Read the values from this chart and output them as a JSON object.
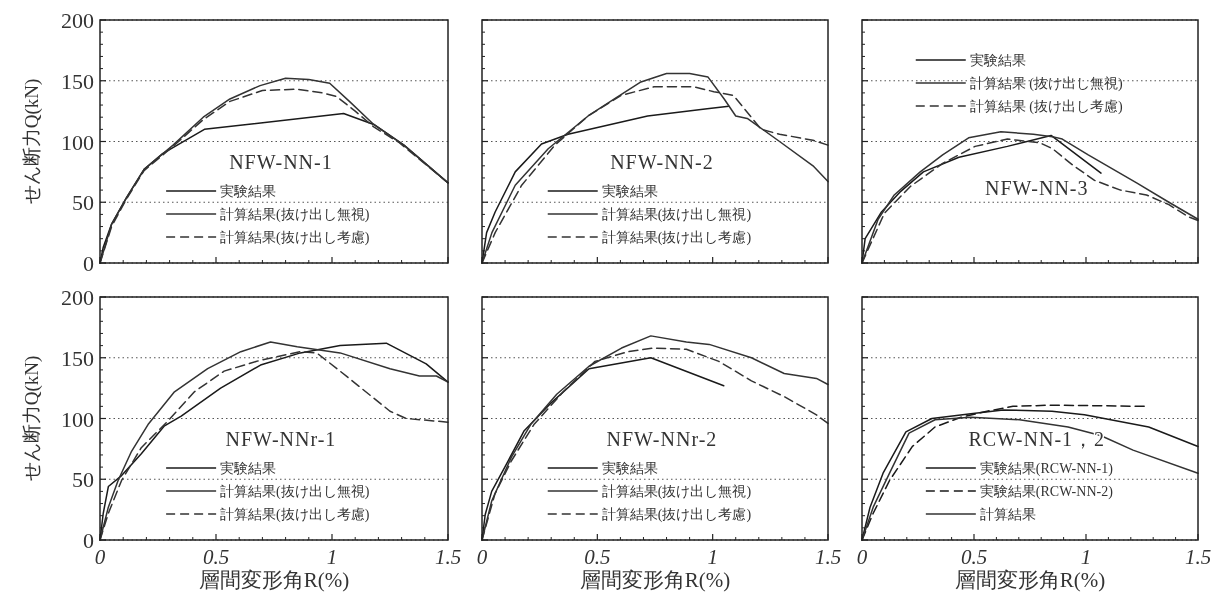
{
  "chart_data": [
    {
      "type": "line",
      "title": "NFW-NN-1",
      "ylabel": "せん断力Q(kN)",
      "xlim": [
        0,
        1.5
      ],
      "ylim": [
        0,
        200
      ],
      "xticks": [
        0,
        0.5,
        1,
        1.5
      ],
      "yticks": [
        0,
        50,
        100,
        150,
        200
      ],
      "grid": "y",
      "legend": "bottom",
      "tick_labels": "y",
      "series": [
        {
          "name": "実験結果",
          "color": "#1a1a1a",
          "line_style": "solid",
          "x": [
            0,
            0.014,
            0.05,
            0.115,
            0.19,
            0.27,
            0.45,
            1.05,
            1.18,
            1.31,
            1.5
          ],
          "values": [
            0,
            13,
            32,
            54,
            77,
            90,
            110,
            123,
            114,
            97,
            66
          ]
        },
        {
          "name": "計算結果(抜け出し無視)",
          "color": "#333333",
          "line_style": "solid",
          "x": [
            0,
            0.05,
            0.115,
            0.19,
            0.315,
            0.445,
            0.56,
            0.69,
            0.8,
            0.9,
            0.99,
            1.075,
            1.18,
            1.31,
            1.5
          ],
          "values": [
            0,
            32,
            54,
            77,
            97,
            120,
            135,
            146,
            152,
            151,
            148,
            133,
            114,
            97,
            66
          ]
        },
        {
          "name": "計算結果(抜け出し考慮)",
          "color": "#333333",
          "line_style": "dashed",
          "x": [
            0,
            0.05,
            0.115,
            0.19,
            0.315,
            0.445,
            0.56,
            0.7,
            0.85,
            0.96,
            1.02,
            1.1,
            1.18,
            1.29,
            1.5
          ],
          "values": [
            0,
            30,
            53,
            76,
            96,
            118,
            133,
            142,
            143,
            140,
            137,
            125,
            112,
            99,
            66
          ]
        }
      ]
    },
    {
      "type": "line",
      "title": "NFW-NN-2",
      "xlim": [
        0,
        1.5
      ],
      "ylim": [
        0,
        200
      ],
      "xticks": [
        0,
        0.5,
        1,
        1.5
      ],
      "yticks": [
        0,
        50,
        100,
        150,
        200
      ],
      "grid": "y",
      "legend": "bottom",
      "tick_labels": false,
      "series": [
        {
          "name": "実験結果",
          "color": "#1a1a1a",
          "line_style": "solid",
          "x": [
            0,
            0.02,
            0.057,
            0.144,
            0.258,
            0.373,
            0.718,
            0.976,
            1.07
          ],
          "values": [
            0,
            25,
            42,
            75,
            98,
            106,
            121,
            127,
            129
          ]
        },
        {
          "name": "計算結果(抜け出し無視)",
          "color": "#333333",
          "line_style": "solid",
          "x": [
            0,
            0.043,
            0.144,
            0.287,
            0.46,
            0.574,
            0.689,
            0.8,
            0.9,
            0.98,
            1.05,
            1.1,
            1.15,
            1.29,
            1.435,
            1.5
          ],
          "values": [
            0,
            25,
            64,
            94,
            121,
            135,
            149,
            156,
            156,
            153,
            135,
            121,
            119,
            100,
            80,
            67
          ]
        },
        {
          "name": "計算結果(抜け出し考慮)",
          "color": "#333333",
          "line_style": "dashed",
          "x": [
            0,
            0.057,
            0.172,
            0.316,
            0.46,
            0.603,
            0.746,
            0.919,
            1.005,
            1.09,
            1.21,
            1.29,
            1.435,
            1.5
          ],
          "values": [
            0,
            25,
            64,
            97,
            121,
            138,
            145,
            145,
            141,
            138,
            110,
            106,
            101,
            97
          ]
        }
      ]
    },
    {
      "type": "line",
      "title": "NFW-NN-3",
      "xlim": [
        0,
        1.5
      ],
      "ylim": [
        0,
        200
      ],
      "xticks": [
        0,
        0.5,
        1,
        1.5
      ],
      "yticks": [
        0,
        50,
        100,
        150,
        200
      ],
      "grid": "y",
      "legend": "top",
      "tick_labels": false,
      "series": [
        {
          "name": "実験結果",
          "color": "#1a1a1a",
          "line_style": "solid",
          "x": [
            0,
            0.014,
            0.087,
            0.173,
            0.274,
            0.433,
            0.649,
            0.844,
            1.067
          ],
          "values": [
            0,
            20,
            42,
            59,
            75,
            87,
            96,
            105,
            74
          ]
        },
        {
          "name": "計算結果 (抜け出し無視)",
          "color": "#333333",
          "line_style": "solid",
          "x": [
            0,
            0.072,
            0.144,
            0.26,
            0.36,
            0.476,
            0.62,
            0.765,
            0.85,
            0.894,
            1.01,
            1.226,
            1.37,
            1.5
          ],
          "values": [
            0,
            36,
            56,
            75,
            89,
            103,
            108,
            106,
            104,
            102,
            89,
            66,
            50,
            36
          ]
        },
        {
          "name": "計算結果 (抜け出し考慮)",
          "color": "#333333",
          "line_style": "dashed",
          "x": [
            0,
            0.1,
            0.216,
            0.36,
            0.505,
            0.649,
            0.793,
            0.851,
            0.938,
            1.038,
            1.154,
            1.27,
            1.37,
            1.457,
            1.5
          ],
          "values": [
            0,
            41,
            63,
            82,
            96,
            102,
            99,
            94,
            81,
            68,
            60,
            56,
            48,
            38,
            35
          ]
        }
      ]
    },
    {
      "type": "line",
      "title": "NFW-NNr-1",
      "xlabel": "層間変形角R(%)",
      "ylabel": "せん断力Q(kN)",
      "xlim": [
        0,
        1.5
      ],
      "ylim": [
        0,
        200
      ],
      "xticks": [
        0,
        0.5,
        1,
        1.5
      ],
      "yticks": [
        0,
        50,
        100,
        150,
        200
      ],
      "grid": "y",
      "legend": "bottom",
      "series": [
        {
          "name": "実験結果",
          "color": "#1a1a1a",
          "line_style": "solid",
          "x": [
            0,
            0.014,
            0.036,
            0.093,
            0.178,
            0.278,
            0.35,
            0.52,
            0.692,
            0.864,
            1.035,
            1.234,
            1.406,
            1.5
          ],
          "values": [
            0,
            22,
            44,
            53,
            71,
            94,
            102,
            125,
            144,
            154,
            160,
            162,
            145,
            130
          ]
        },
        {
          "name": "計算結果(抜け出し無視)",
          "color": "#333333",
          "line_style": "solid",
          "x": [
            0,
            0.036,
            0.078,
            0.136,
            0.207,
            0.321,
            0.464,
            0.607,
            0.735,
            0.85,
            1.035,
            1.25,
            1.377,
            1.45,
            1.5
          ],
          "values": [
            0,
            27,
            49,
            73,
            95,
            122,
            141,
            155,
            163,
            159,
            154,
            141,
            135,
            135,
            130
          ]
        },
        {
          "name": "計算結果(抜け出し考慮)",
          "color": "#333333",
          "line_style": "dashed",
          "x": [
            0,
            0.036,
            0.093,
            0.178,
            0.293,
            0.407,
            0.535,
            0.692,
            0.864,
            0.934,
            1.035,
            1.25,
            1.32,
            1.5
          ],
          "values": [
            0,
            22,
            49,
            76,
            98,
            122,
            139,
            148,
            155,
            154,
            139,
            106,
            100,
            97
          ]
        }
      ]
    },
    {
      "type": "line",
      "title": "NFW-NNr-2",
      "xlabel": "層間変形角R(%)",
      "xlim": [
        0,
        1.5
      ],
      "ylim": [
        0,
        200
      ],
      "xticks": [
        0,
        0.5,
        1,
        1.5
      ],
      "yticks": [
        0,
        50,
        100,
        150,
        200
      ],
      "grid": "y",
      "legend": "bottom",
      "tick_labels": "x",
      "series": [
        {
          "name": "実験結果",
          "color": "#1a1a1a",
          "line_style": "solid",
          "x": [
            0,
            0.014,
            0.042,
            0.113,
            0.183,
            0.295,
            0.464,
            0.732,
            1.048
          ],
          "values": [
            0,
            21,
            40,
            65,
            90,
            112,
            141,
            150,
            127
          ]
        },
        {
          "name": "計算結果(抜け出し無視)",
          "color": "#333333",
          "line_style": "solid",
          "x": [
            0,
            0.042,
            0.127,
            0.211,
            0.324,
            0.464,
            0.605,
            0.732,
            0.886,
            0.985,
            1.168,
            1.31,
            1.45,
            1.5
          ],
          "values": [
            0,
            32,
            68,
            95,
            120,
            143,
            158,
            168,
            163,
            161,
            150,
            137,
            133,
            128
          ]
        },
        {
          "name": "計算結果(抜け出し考慮)",
          "color": "#333333",
          "line_style": "dashed",
          "x": [
            0,
            0.056,
            0.127,
            0.225,
            0.352,
            0.49,
            0.633,
            0.746,
            0.886,
            1.027,
            1.168,
            1.31,
            1.45,
            1.5
          ],
          "values": [
            0,
            38,
            65,
            95,
            122,
            147,
            155,
            158,
            157,
            147,
            131,
            118,
            103,
            96
          ]
        }
      ]
    },
    {
      "type": "line",
      "title": "RCW-NN-1，2",
      "xlabel": "層間変形角R(%)",
      "xlim": [
        0,
        1.5
      ],
      "ylim": [
        0,
        200
      ],
      "xticks": [
        0,
        0.5,
        1,
        1.5
      ],
      "yticks": [
        0,
        50,
        100,
        150,
        200
      ],
      "grid": "y",
      "legend": "bottom",
      "tick_labels": "x",
      "series": [
        {
          "name": "実験結果(RCW-NN-1)",
          "color": "#1a1a1a",
          "line_style": "solid",
          "x": [
            0,
            0.036,
            0.094,
            0.196,
            0.312,
            0.486,
            0.63,
            0.848,
            0.993,
            1.28,
            1.5
          ],
          "values": [
            0,
            27,
            55,
            89,
            100,
            104,
            107,
            106,
            103,
            93,
            77
          ]
        },
        {
          "name": "実験結果(RCW-NN-2)",
          "color": "#1a1a1a",
          "line_style": "dashed",
          "x": [
            0,
            0.05,
            0.123,
            0.225,
            0.326,
            0.442,
            0.558,
            0.674,
            0.848,
            1.26
          ],
          "values": [
            0,
            22,
            49,
            77,
            93,
            101,
            106,
            110,
            111,
            110
          ]
        },
        {
          "name": "計算結果",
          "color": "#333333",
          "line_style": "solid",
          "x": [
            0,
            0.05,
            0.123,
            0.21,
            0.326,
            0.486,
            0.703,
            0.92,
            1.065,
            1.21,
            1.5
          ],
          "values": [
            0,
            27,
            55,
            88,
            99,
            101,
            99,
            93,
            86,
            74,
            55
          ]
        }
      ]
    }
  ]
}
